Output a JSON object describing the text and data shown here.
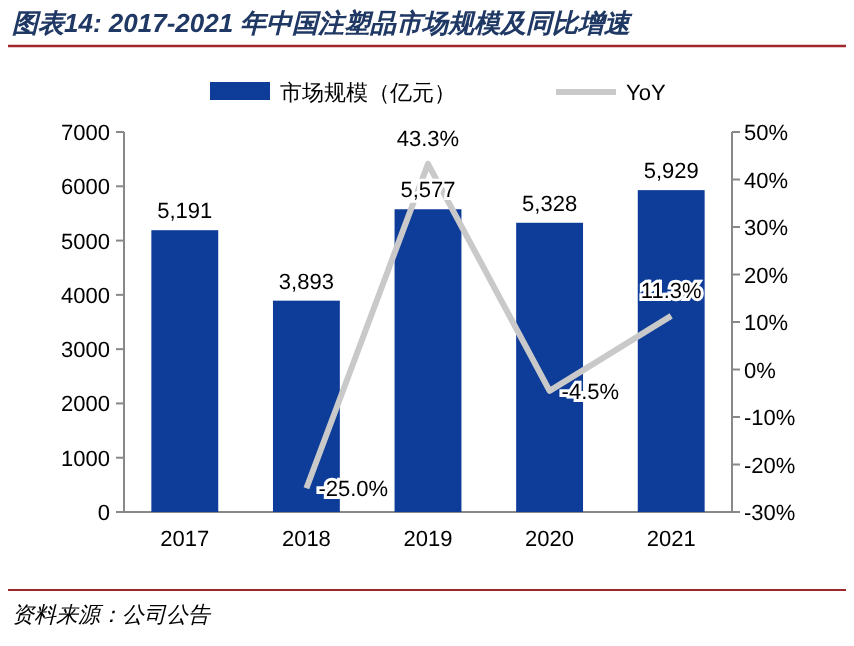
{
  "chart_data": {
    "type": "bar",
    "title": "图表14: 2017-2021 年中国注塑品市场规模及同比增速",
    "categories": [
      "2017",
      "2018",
      "2019",
      "2020",
      "2021"
    ],
    "series": [
      {
        "name": "市场规模（亿元）",
        "color": "#0d3c99",
        "values": [
          5191,
          3893,
          5577,
          5328,
          5929
        ],
        "value_labels": [
          "5,191",
          "3,893",
          "5,577",
          "5,328",
          "5,929"
        ]
      },
      {
        "name": "YoY",
        "type": "line",
        "axis": "y2",
        "color": "#c9c9c9",
        "values": [
          null,
          -25.0,
          43.3,
          -4.5,
          11.3
        ],
        "value_labels": [
          null,
          "-25.0%",
          "43.3%",
          "-4.5%",
          "11.3%"
        ]
      }
    ],
    "ylim": [
      0,
      7000
    ],
    "yticks": [
      0,
      1000,
      2000,
      3000,
      4000,
      5000,
      6000,
      7000
    ],
    "y2lim": [
      -30,
      50
    ],
    "y2ticks": [
      {
        "value": -30,
        "label": "-30%"
      },
      {
        "value": -20,
        "label": "-20%"
      },
      {
        "value": -10,
        "label": "-10%"
      },
      {
        "value": 0,
        "label": "0%"
      },
      {
        "value": 10,
        "label": "10%"
      },
      {
        "value": 20,
        "label": "20%"
      },
      {
        "value": 30,
        "label": "30%"
      },
      {
        "value": 40,
        "label": "40%"
      },
      {
        "value": 50,
        "label": "50%"
      }
    ],
    "legend": "top",
    "annotations": [
      "资料来源：公司公告"
    ]
  }
}
